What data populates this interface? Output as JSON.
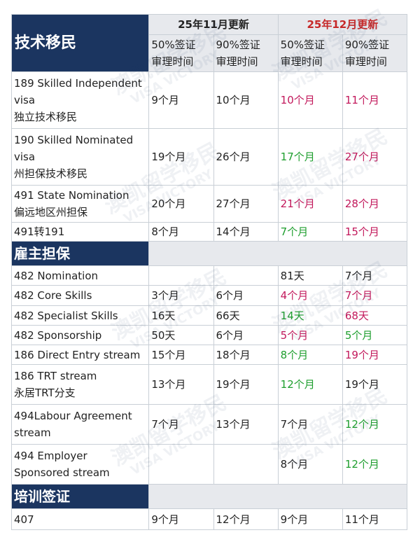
{
  "header": {
    "category": "技术移民",
    "periods": [
      {
        "label": "25年11月更新",
        "color": "#222222"
      },
      {
        "label": "25年12月更新",
        "color": "#c62828"
      }
    ],
    "columns": [
      "50%签证审理时间",
      "90%签证审理时间",
      "50%签证审理时间",
      "90%签证审理时间"
    ],
    "columns_lines": [
      [
        "50%签证",
        "审理时间"
      ],
      [
        "90%签证",
        "审理时间"
      ],
      [
        "50%签证",
        "审理时间"
      ],
      [
        "90%签证",
        "审理时间"
      ]
    ]
  },
  "sections": [
    {
      "title": "技术移民",
      "rows": [
        {
          "name": [
            "189 Skilled Independent",
            "visa",
            "独立技术移民"
          ],
          "values": [
            "9个月",
            "10个月",
            "10个月",
            "11个月"
          ],
          "colors": [
            "black",
            "black",
            "red",
            "red"
          ]
        },
        {
          "name": [
            "190 Skilled Nominated",
            "visa",
            "州担保技术移民"
          ],
          "values": [
            "19个月",
            "26个月",
            "17个月",
            "27个月"
          ],
          "colors": [
            "black",
            "black",
            "green",
            "red"
          ]
        },
        {
          "name": [
            "491 State Nomination",
            "偏远地区州担保"
          ],
          "values": [
            "20个月",
            "27个月",
            "21个月",
            "28个月"
          ],
          "colors": [
            "black",
            "black",
            "red",
            "red"
          ]
        },
        {
          "name": [
            "491转191"
          ],
          "values": [
            "8个月",
            "14个月",
            "7个月",
            "15个月"
          ],
          "colors": [
            "black",
            "black",
            "green",
            "red"
          ]
        }
      ]
    },
    {
      "title": "雇主担保",
      "rows": [
        {
          "name": [
            "482 Nomination"
          ],
          "values": [
            "",
            "",
            "81天",
            "7个月"
          ],
          "colors": [
            "black",
            "black",
            "black",
            "black"
          ]
        },
        {
          "name": [
            "482 Core Skills"
          ],
          "values": [
            "3个月",
            "6个月",
            "4个月",
            "7个月"
          ],
          "colors": [
            "black",
            "black",
            "red",
            "red"
          ]
        },
        {
          "name": [
            "482 Specialist Skills"
          ],
          "values": [
            "16天",
            "66天",
            "14天",
            "68天"
          ],
          "colors": [
            "black",
            "black",
            "green",
            "red"
          ]
        },
        {
          "name": [
            "482 Sponsorship"
          ],
          "values": [
            "50天",
            "6个月",
            "5个月",
            "5个月"
          ],
          "colors": [
            "black",
            "black",
            "red",
            "green"
          ]
        },
        {
          "name": [
            "186 Direct Entry stream"
          ],
          "values": [
            "15个月",
            "18个月",
            "8个月",
            "19个月"
          ],
          "colors": [
            "black",
            "black",
            "green",
            "red"
          ]
        },
        {
          "name": [
            "186 TRT stream",
            "永居TRT分支"
          ],
          "values": [
            "13个月",
            "19个月",
            "12个月",
            "19个月"
          ],
          "colors": [
            "black",
            "black",
            "green",
            "black"
          ]
        },
        {
          "name": [
            "494Labour Agreement",
            "stream"
          ],
          "values": [
            "7个月",
            "13个月",
            "7个月",
            "12个月"
          ],
          "colors": [
            "black",
            "black",
            "black",
            "green"
          ]
        },
        {
          "name": [
            "494 Employer",
            "Sponsored stream"
          ],
          "values": [
            "",
            "",
            "8个月",
            "12个月"
          ],
          "colors": [
            "black",
            "black",
            "black",
            "green"
          ]
        }
      ]
    },
    {
      "title": "培训签证",
      "rows": [
        {
          "name": [
            "407"
          ],
          "values": [
            "9个月",
            "12个月",
            "9个月",
            "11个月"
          ],
          "colors": [
            "black",
            "black",
            "black",
            "black"
          ]
        }
      ]
    }
  ],
  "watermark": {
    "cn": "澳凯留学移民",
    "en": "VISA VICTORY"
  },
  "colors": {
    "navy": "#1b3560",
    "header_gray": "#e7e9ed",
    "red": "#c2185b",
    "green": "#1e9e2e",
    "grid": "#c9cfd6"
  }
}
